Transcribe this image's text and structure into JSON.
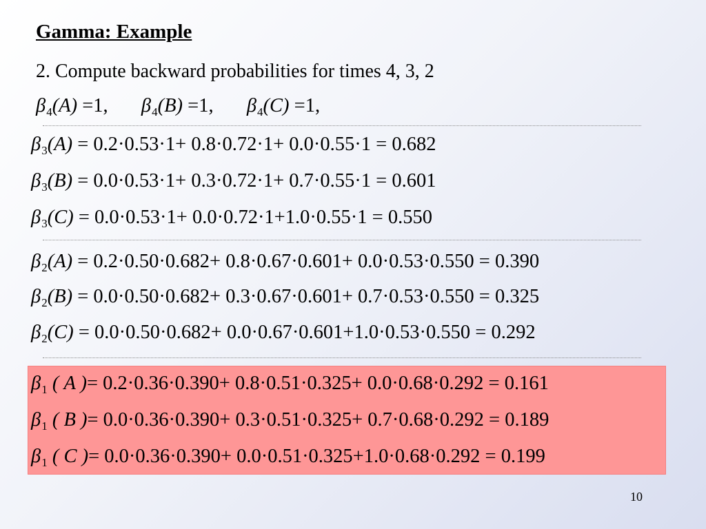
{
  "slide": {
    "title": "Gamma: Example",
    "subtitle": "2. Compute backward probabilities for times 4, 3, 2",
    "page_number": "10",
    "highlight_color": "#fe9696"
  },
  "beta4": [
    {
      "symbol": "β",
      "sub": "4",
      "arg": "(A)",
      "rhs": "=1,"
    },
    {
      "symbol": "β",
      "sub": "4",
      "arg": "(B)",
      "rhs": "=1,"
    },
    {
      "symbol": "β",
      "sub": "4",
      "arg": "(C)",
      "rhs": "=1,"
    }
  ],
  "beta3": [
    {
      "symbol": "β",
      "sub": "3",
      "arg": "(A)",
      "rhs": "= 0.2·0.53·1+ 0.8·0.72·1+ 0.0·0.55·1 = 0.682"
    },
    {
      "symbol": "β",
      "sub": "3",
      "arg": "(B)",
      "rhs": "= 0.0·0.53·1+ 0.3·0.72·1+ 0.7·0.55·1 = 0.601"
    },
    {
      "symbol": "β",
      "sub": "3",
      "arg": "(C)",
      "rhs": "= 0.0·0.53·1+ 0.0·0.72·1+1.0·0.55·1 = 0.550"
    }
  ],
  "beta2": [
    {
      "symbol": "β",
      "sub": "2",
      "arg": "(A)",
      "rhs": "= 0.2·0.50·0.682+ 0.8·0.67·0.601+ 0.0·0.53·0.550 = 0.390"
    },
    {
      "symbol": "β",
      "sub": "2",
      "arg": "(B)",
      "rhs": "= 0.0·0.50·0.682+ 0.3·0.67·0.601+ 0.7·0.53·0.550 = 0.325"
    },
    {
      "symbol": "β",
      "sub": "2",
      "arg": "(C)",
      "rhs": "= 0.0·0.50·0.682+ 0.0·0.67·0.601+1.0·0.53·0.550 = 0.292"
    }
  ],
  "beta1": [
    {
      "symbol": "β",
      "sub": "1",
      "arg": "( A )",
      "rhs": "= 0.2·0.36·0.390+ 0.8·0.51·0.325+ 0.0·0.68·0.292 = 0.161"
    },
    {
      "symbol": "β",
      "sub": "1",
      "arg": "( B )",
      "rhs": "= 0.0·0.36·0.390+ 0.3·0.51·0.325+ 0.7·0.68·0.292 = 0.189"
    },
    {
      "symbol": "β",
      "sub": "1",
      "arg": "( C )",
      "rhs": "= 0.0·0.36·0.390+ 0.0·0.51·0.325+1.0·0.68·0.292 = 0.199"
    }
  ]
}
